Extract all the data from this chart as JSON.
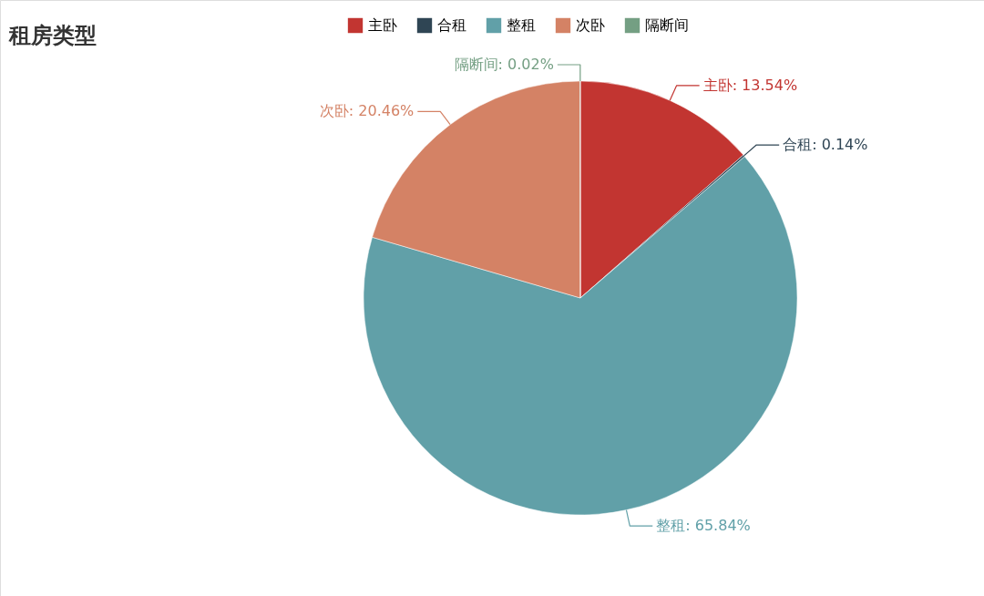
{
  "chart_data": {
    "type": "pie",
    "title": "租房类型",
    "categories": [
      "主卧",
      "合租",
      "整租",
      "次卧",
      "隔断间"
    ],
    "values": [
      13.54,
      0.14,
      65.84,
      20.46,
      0.02
    ],
    "colors": [
      "#c23531",
      "#2f4554",
      "#61a0a8",
      "#d48265",
      "#749f83"
    ],
    "value_labels": [
      "主卧: 13.54%",
      "合租: 0.14%",
      "整租: 65.84%",
      "次卧: 20.46%",
      "隔断间: 0.02%"
    ],
    "legend": "top"
  }
}
